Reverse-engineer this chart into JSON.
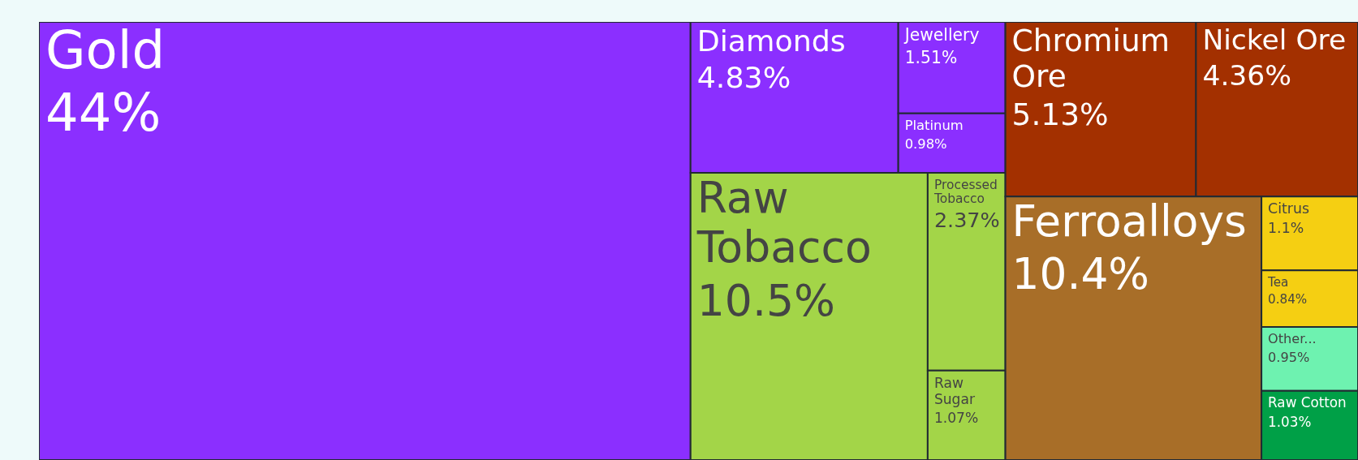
{
  "chart_data": {
    "type": "other",
    "categories": [
      "Gold",
      "Diamonds",
      "Jewellery",
      "Platinum",
      "Raw Tobacco",
      "Processed Tobacco",
      "Raw Sugar",
      "Chromium Ore",
      "Nickel Ore",
      "Ferroalloys",
      "Citrus",
      "Tea",
      "Other...",
      "Raw Cotton"
    ],
    "values": [
      44,
      4.83,
      1.51,
      0.98,
      10.5,
      2.37,
      1.07,
      5.13,
      4.36,
      10.4,
      1.1,
      0.84,
      0.95,
      1.03
    ],
    "value_labels": [
      "44%",
      "4.83%",
      "1.51%",
      "0.98%",
      "10.5%",
      "2.37%",
      "1.07%",
      "5.13%",
      "4.36%",
      "10.4%",
      "1.1%",
      "0.84%",
      "0.95%",
      "1.03%"
    ],
    "colors": [
      "#8b2fff",
      "#8b2fff",
      "#8b2fff",
      "#8b2fff",
      "#a3d548",
      "#a3d548",
      "#a3d548",
      "#a33000",
      "#a33000",
      "#a86e28",
      "#f5cf12",
      "#f5cf12",
      "#6ef2b0",
      "#00a047"
    ]
  }
}
